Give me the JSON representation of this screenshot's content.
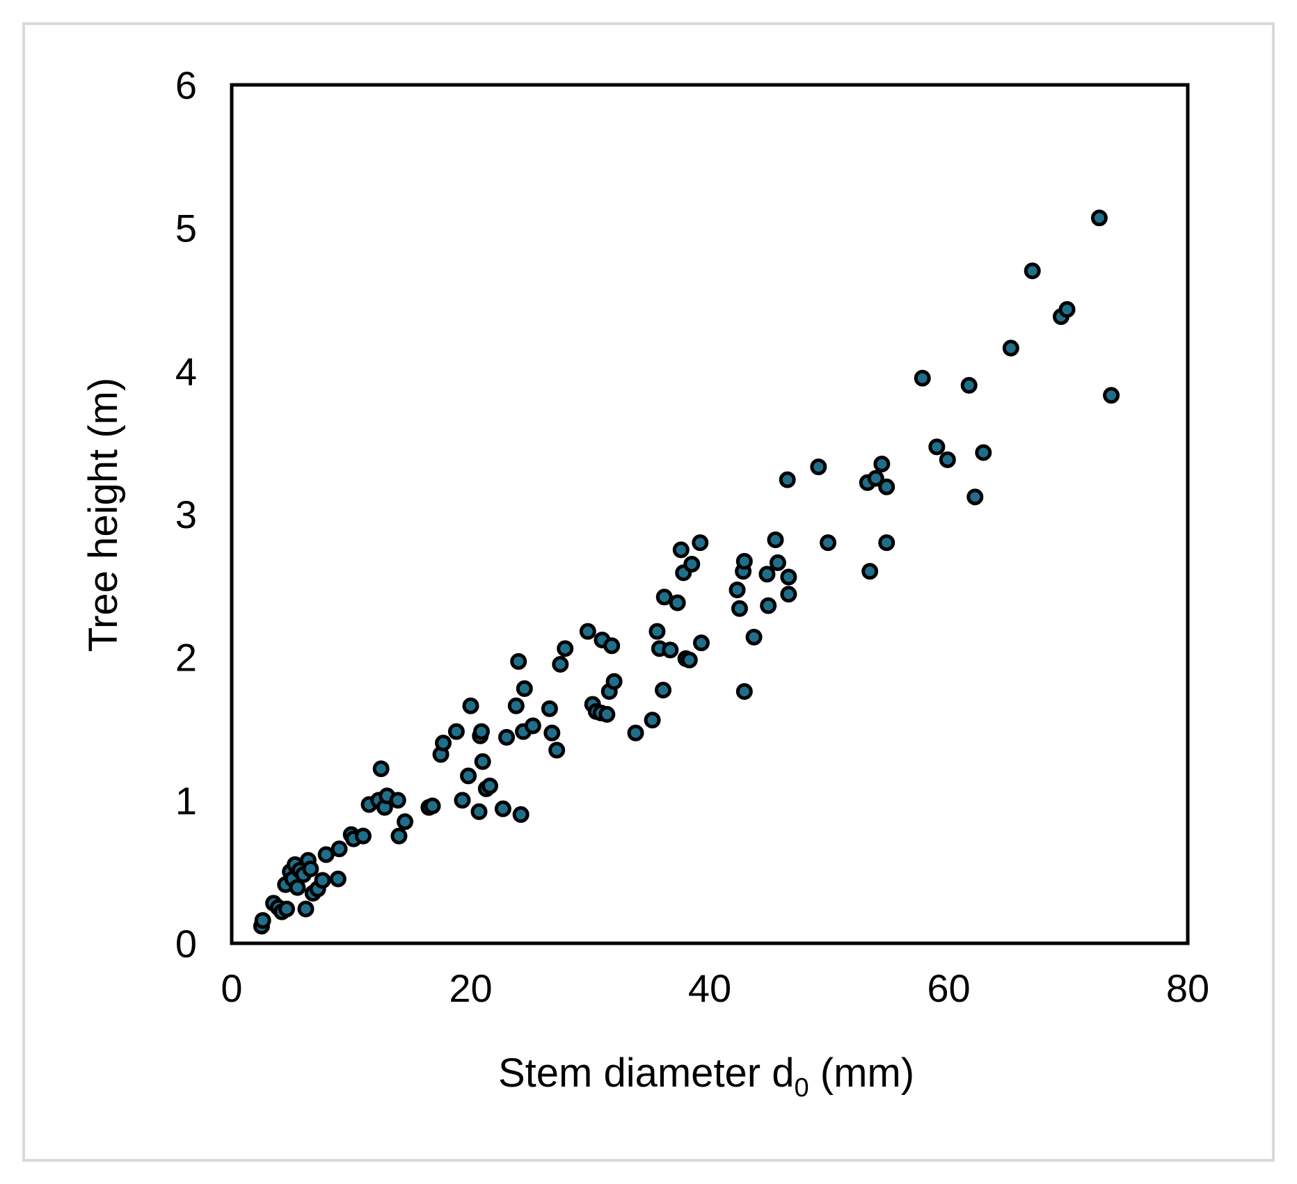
{
  "chart_data": {
    "type": "scatter",
    "title": "",
    "xlabel_main": "Stem diameter d",
    "xlabel_sub": "0",
    "xlabel_unit": " (mm)",
    "ylabel": "Tree height (m)",
    "xlim": [
      0,
      80
    ],
    "ylim": [
      0,
      6
    ],
    "xticks": [
      "0",
      "20",
      "40",
      "60",
      "80"
    ],
    "yticks": [
      "0",
      "1",
      "2",
      "3",
      "4",
      "5",
      "6"
    ],
    "grid": false,
    "legend": "none",
    "marker_fill": "#1f6f8b",
    "marker_edge": "#000000",
    "points": [
      [
        2.5,
        0.12
      ],
      [
        2.6,
        0.16
      ],
      [
        3.5,
        0.28
      ],
      [
        3.9,
        0.25
      ],
      [
        4.2,
        0.22
      ],
      [
        4.5,
        0.41
      ],
      [
        4.6,
        0.24
      ],
      [
        4.9,
        0.5
      ],
      [
        5.1,
        0.45
      ],
      [
        5.3,
        0.55
      ],
      [
        5.5,
        0.39
      ],
      [
        5.7,
        0.51
      ],
      [
        6.0,
        0.48
      ],
      [
        6.2,
        0.24
      ],
      [
        6.4,
        0.58
      ],
      [
        6.6,
        0.52
      ],
      [
        6.8,
        0.35
      ],
      [
        7.2,
        0.38
      ],
      [
        7.6,
        0.44
      ],
      [
        7.9,
        0.62
      ],
      [
        8.9,
        0.45
      ],
      [
        9.0,
        0.66
      ],
      [
        10.0,
        0.76
      ],
      [
        10.2,
        0.73
      ],
      [
        11.0,
        0.75
      ],
      [
        11.5,
        0.97
      ],
      [
        12.3,
        1.0
      ],
      [
        12.5,
        1.22
      ],
      [
        12.8,
        0.95
      ],
      [
        13.0,
        1.03
      ],
      [
        13.9,
        1.0
      ],
      [
        14.0,
        0.75
      ],
      [
        14.5,
        0.85
      ],
      [
        16.5,
        0.95
      ],
      [
        16.8,
        0.96
      ],
      [
        17.5,
        1.32
      ],
      [
        17.7,
        1.4
      ],
      [
        18.8,
        1.48
      ],
      [
        19.3,
        1.0
      ],
      [
        19.8,
        1.17
      ],
      [
        20.0,
        1.66
      ],
      [
        20.7,
        0.92
      ],
      [
        20.8,
        1.45
      ],
      [
        20.9,
        1.48
      ],
      [
        21.0,
        1.27
      ],
      [
        21.3,
        1.08
      ],
      [
        21.6,
        1.1
      ],
      [
        22.7,
        0.94
      ],
      [
        23.0,
        1.44
      ],
      [
        23.8,
        1.66
      ],
      [
        24.0,
        1.97
      ],
      [
        24.2,
        0.9
      ],
      [
        24.4,
        1.48
      ],
      [
        24.5,
        1.78
      ],
      [
        25.2,
        1.52
      ],
      [
        26.6,
        1.64
      ],
      [
        26.8,
        1.47
      ],
      [
        27.2,
        1.35
      ],
      [
        27.5,
        1.95
      ],
      [
        27.9,
        2.06
      ],
      [
        29.8,
        2.18
      ],
      [
        30.2,
        1.67
      ],
      [
        30.5,
        1.62
      ],
      [
        30.9,
        1.61
      ],
      [
        31.0,
        2.12
      ],
      [
        31.4,
        1.6
      ],
      [
        31.6,
        1.76
      ],
      [
        31.8,
        2.08
      ],
      [
        32.0,
        1.83
      ],
      [
        33.8,
        1.47
      ],
      [
        35.2,
        1.56
      ],
      [
        35.6,
        2.18
      ],
      [
        35.8,
        2.06
      ],
      [
        36.1,
        1.77
      ],
      [
        36.2,
        2.42
      ],
      [
        36.7,
        2.05
      ],
      [
        37.3,
        2.38
      ],
      [
        37.6,
        2.75
      ],
      [
        37.8,
        2.59
      ],
      [
        38.0,
        1.99
      ],
      [
        38.3,
        1.98
      ],
      [
        38.5,
        2.65
      ],
      [
        39.2,
        2.8
      ],
      [
        39.3,
        2.1
      ],
      [
        42.3,
        2.47
      ],
      [
        42.5,
        2.34
      ],
      [
        42.8,
        2.6
      ],
      [
        42.9,
        2.67
      ],
      [
        42.9,
        1.76
      ],
      [
        43.7,
        2.14
      ],
      [
        44.8,
        2.58
      ],
      [
        44.9,
        2.36
      ],
      [
        45.5,
        2.82
      ],
      [
        45.7,
        2.66
      ],
      [
        46.5,
        3.24
      ],
      [
        46.6,
        2.44
      ],
      [
        46.6,
        2.56
      ],
      [
        49.1,
        3.33
      ],
      [
        49.9,
        2.8
      ],
      [
        53.2,
        3.22
      ],
      [
        53.4,
        2.6
      ],
      [
        53.9,
        3.25
      ],
      [
        54.4,
        3.35
      ],
      [
        54.8,
        3.19
      ],
      [
        54.8,
        2.8
      ],
      [
        57.8,
        3.95
      ],
      [
        59.0,
        3.47
      ],
      [
        59.9,
        3.38
      ],
      [
        61.7,
        3.9
      ],
      [
        62.2,
        3.12
      ],
      [
        62.9,
        3.43
      ],
      [
        65.2,
        4.16
      ],
      [
        67.0,
        4.7
      ],
      [
        69.4,
        4.38
      ],
      [
        69.9,
        4.43
      ],
      [
        72.6,
        5.07
      ],
      [
        73.6,
        3.83
      ]
    ]
  }
}
